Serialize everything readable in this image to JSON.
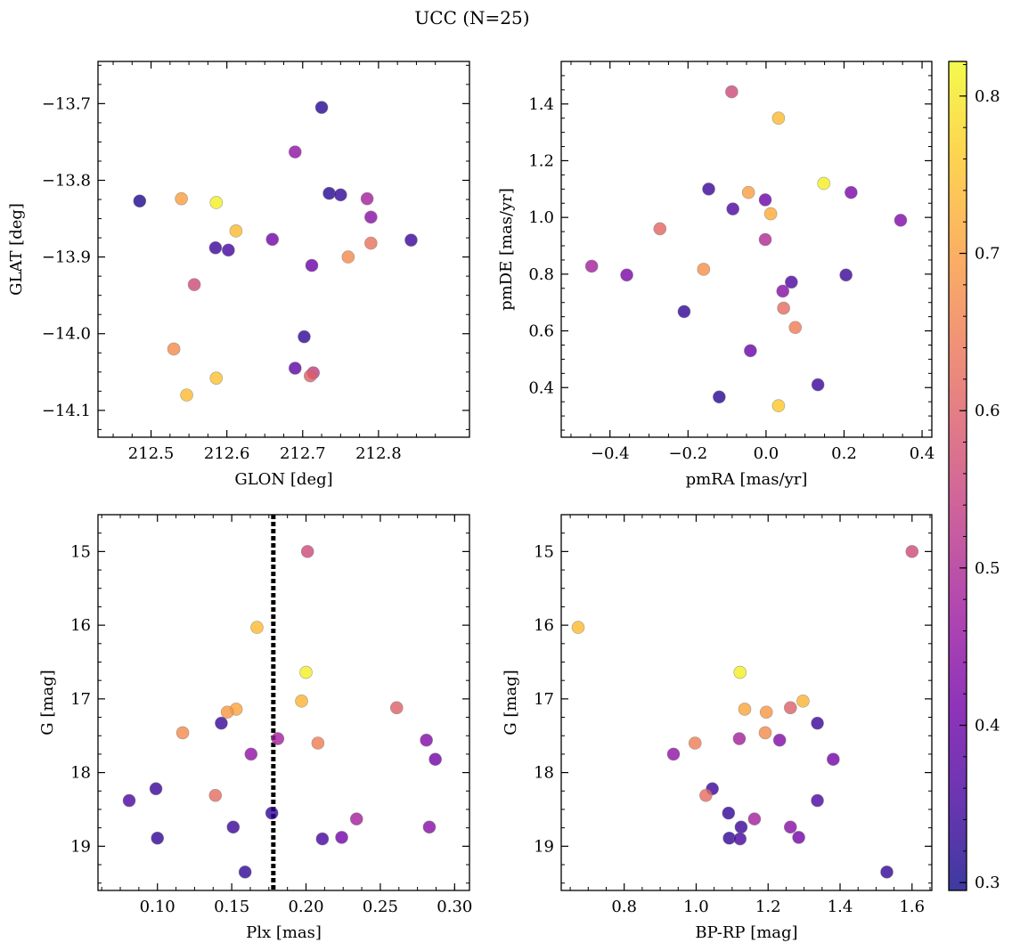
{
  "figure": {
    "title": "UCC (N=25)"
  },
  "colors": {
    "cmap": [
      "#0d0887",
      "#46039f",
      "#7201a8",
      "#9c179e",
      "#bd3786",
      "#d8576b",
      "#ed7953",
      "#fb9f3a",
      "#fdca26",
      "#f0f921"
    ],
    "marker_alpha": 0.8,
    "marker_edge": "#7f7f7f",
    "vline": "#000000"
  },
  "chart_data": [
    {
      "type": "scatter",
      "panel": "top-left",
      "xlabel": "GLON [deg]",
      "ylabel": "GLAT [deg]",
      "xlim": [
        212.43,
        212.92
      ],
      "ylim": [
        -14.135,
        -13.645
      ],
      "xticks": [
        212.5,
        212.6,
        212.7,
        212.8
      ],
      "xtick_labels": [
        "212.5",
        "212.6",
        "212.7",
        "212.8"
      ],
      "yticks": [
        -13.7,
        -13.8,
        -13.9,
        -14.0,
        -14.1
      ],
      "ytick_labels": [
        "−13.7",
        "−13.8",
        "−13.9",
        "−14.0",
        "−14.1"
      ],
      "grid": false,
      "points": [
        {
          "x": 212.725,
          "y": -13.705,
          "c": 0.32
        },
        {
          "x": 212.69,
          "y": -13.763,
          "c": 0.45
        },
        {
          "x": 212.485,
          "y": -13.827,
          "c": 0.31
        },
        {
          "x": 212.54,
          "y": -13.824,
          "c": 0.7
        },
        {
          "x": 212.586,
          "y": -13.829,
          "c": 0.81
        },
        {
          "x": 212.735,
          "y": -13.817,
          "c": 0.32
        },
        {
          "x": 212.75,
          "y": -13.819,
          "c": 0.33
        },
        {
          "x": 212.785,
          "y": -13.824,
          "c": 0.48
        },
        {
          "x": 212.79,
          "y": -13.848,
          "c": 0.44
        },
        {
          "x": 212.612,
          "y": -13.866,
          "c": 0.74
        },
        {
          "x": 212.585,
          "y": -13.888,
          "c": 0.34
        },
        {
          "x": 212.602,
          "y": -13.891,
          "c": 0.35
        },
        {
          "x": 212.66,
          "y": -13.877,
          "c": 0.41
        },
        {
          "x": 212.79,
          "y": -13.882,
          "c": 0.63
        },
        {
          "x": 212.843,
          "y": -13.878,
          "c": 0.34
        },
        {
          "x": 212.76,
          "y": -13.9,
          "c": 0.67
        },
        {
          "x": 212.712,
          "y": -13.911,
          "c": 0.4
        },
        {
          "x": 212.557,
          "y": -13.936,
          "c": 0.56
        },
        {
          "x": 212.702,
          "y": -14.004,
          "c": 0.33
        },
        {
          "x": 212.53,
          "y": -14.02,
          "c": 0.67
        },
        {
          "x": 212.69,
          "y": -14.045,
          "c": 0.38
        },
        {
          "x": 212.714,
          "y": -14.051,
          "c": 0.53
        },
        {
          "x": 212.71,
          "y": -14.055,
          "c": 0.6
        },
        {
          "x": 212.586,
          "y": -14.058,
          "c": 0.75
        },
        {
          "x": 212.547,
          "y": -14.08,
          "c": 0.74
        }
      ]
    },
    {
      "type": "scatter",
      "panel": "top-right",
      "xlabel": "pmRA [mas/yr]",
      "ylabel": "pmDE [mas/yr]",
      "xlim": [
        -0.525,
        0.425
      ],
      "ylim": [
        0.225,
        1.55
      ],
      "xticks": [
        -0.4,
        -0.2,
        0.0,
        0.2,
        0.4
      ],
      "xtick_labels": [
        "−0.4",
        "−0.2",
        "0.0",
        "0.2",
        "0.4"
      ],
      "yticks": [
        0.4,
        0.6,
        0.8,
        1.0,
        1.2,
        1.4
      ],
      "ytick_labels": [
        "0.4",
        "0.6",
        "0.8",
        "1.0",
        "1.2",
        "1.4"
      ],
      "grid": false,
      "points": [
        {
          "x": -0.088,
          "y": 1.443,
          "c": 0.56
        },
        {
          "x": 0.032,
          "y": 1.35,
          "c": 0.74
        },
        {
          "x": 0.148,
          "y": 1.12,
          "c": 0.81
        },
        {
          "x": -0.147,
          "y": 1.1,
          "c": 0.34
        },
        {
          "x": -0.045,
          "y": 1.088,
          "c": 0.7
        },
        {
          "x": 0.218,
          "y": 1.088,
          "c": 0.42
        },
        {
          "x": -0.002,
          "y": 1.062,
          "c": 0.4
        },
        {
          "x": -0.085,
          "y": 1.03,
          "c": 0.36
        },
        {
          "x": 0.012,
          "y": 1.013,
          "c": 0.72
        },
        {
          "x": 0.345,
          "y": 0.99,
          "c": 0.43
        },
        {
          "x": -0.272,
          "y": 0.96,
          "c": 0.61
        },
        {
          "x": -0.002,
          "y": 0.922,
          "c": 0.5
        },
        {
          "x": -0.447,
          "y": 0.828,
          "c": 0.48
        },
        {
          "x": -0.16,
          "y": 0.817,
          "c": 0.68
        },
        {
          "x": -0.357,
          "y": 0.797,
          "c": 0.42
        },
        {
          "x": 0.205,
          "y": 0.797,
          "c": 0.34
        },
        {
          "x": 0.065,
          "y": 0.772,
          "c": 0.36
        },
        {
          "x": 0.043,
          "y": 0.74,
          "c": 0.44
        },
        {
          "x": 0.045,
          "y": 0.68,
          "c": 0.62
        },
        {
          "x": -0.21,
          "y": 0.668,
          "c": 0.33
        },
        {
          "x": 0.075,
          "y": 0.612,
          "c": 0.65
        },
        {
          "x": -0.04,
          "y": 0.53,
          "c": 0.4
        },
        {
          "x": 0.133,
          "y": 0.41,
          "c": 0.34
        },
        {
          "x": -0.12,
          "y": 0.367,
          "c": 0.32
        },
        {
          "x": 0.032,
          "y": 0.336,
          "c": 0.76
        }
      ]
    },
    {
      "type": "scatter",
      "panel": "bottom-left",
      "xlabel": "Plx [mas]",
      "ylabel": "G [mag]",
      "xlim": [
        0.06,
        0.31
      ],
      "ylim": [
        19.6,
        14.5
      ],
      "y_inverted": true,
      "xticks": [
        0.1,
        0.15,
        0.2,
        0.25,
        0.3
      ],
      "xtick_labels": [
        "0.10",
        "0.15",
        "0.20",
        "0.25",
        "0.30"
      ],
      "yticks": [
        15,
        16,
        17,
        18,
        19
      ],
      "ytick_labels": [
        "15",
        "16",
        "17",
        "18",
        "19"
      ],
      "grid": false,
      "vline": {
        "x": 0.178,
        "style": "dotted"
      },
      "points": [
        {
          "x": 0.201,
          "y": 15.0,
          "c": 0.56
        },
        {
          "x": 0.167,
          "y": 16.03,
          "c": 0.74
        },
        {
          "x": 0.2,
          "y": 16.64,
          "c": 0.81
        },
        {
          "x": 0.197,
          "y": 17.03,
          "c": 0.73
        },
        {
          "x": 0.153,
          "y": 17.14,
          "c": 0.71
        },
        {
          "x": 0.147,
          "y": 17.18,
          "c": 0.69
        },
        {
          "x": 0.261,
          "y": 17.12,
          "c": 0.6
        },
        {
          "x": 0.117,
          "y": 17.46,
          "c": 0.67
        },
        {
          "x": 0.143,
          "y": 17.33,
          "c": 0.34
        },
        {
          "x": 0.181,
          "y": 17.54,
          "c": 0.48
        },
        {
          "x": 0.208,
          "y": 17.6,
          "c": 0.65
        },
        {
          "x": 0.281,
          "y": 17.56,
          "c": 0.43
        },
        {
          "x": 0.163,
          "y": 17.75,
          "c": 0.45
        },
        {
          "x": 0.287,
          "y": 17.82,
          "c": 0.41
        },
        {
          "x": 0.099,
          "y": 18.22,
          "c": 0.34
        },
        {
          "x": 0.139,
          "y": 18.31,
          "c": 0.62
        },
        {
          "x": 0.081,
          "y": 18.38,
          "c": 0.36
        },
        {
          "x": 0.177,
          "y": 18.55,
          "c": 0.33
        },
        {
          "x": 0.234,
          "y": 18.63,
          "c": 0.48
        },
        {
          "x": 0.151,
          "y": 18.74,
          "c": 0.34
        },
        {
          "x": 0.283,
          "y": 18.74,
          "c": 0.44
        },
        {
          "x": 0.1,
          "y": 18.89,
          "c": 0.33
        },
        {
          "x": 0.211,
          "y": 18.9,
          "c": 0.35
        },
        {
          "x": 0.224,
          "y": 18.88,
          "c": 0.41
        },
        {
          "x": 0.159,
          "y": 19.35,
          "c": 0.33
        }
      ]
    },
    {
      "type": "scatter",
      "panel": "bottom-right",
      "xlabel": "BP-RP [mag]",
      "ylabel": "G [mag]",
      "xlim": [
        0.625,
        1.655
      ],
      "ylim": [
        19.6,
        14.5
      ],
      "y_inverted": true,
      "xticks": [
        0.8,
        1.0,
        1.2,
        1.4,
        1.6
      ],
      "xtick_labels": [
        "0.8",
        "1.0",
        "1.2",
        "1.4",
        "1.6"
      ],
      "yticks": [
        15,
        16,
        17,
        18,
        19
      ],
      "ytick_labels": [
        "15",
        "16",
        "17",
        "18",
        "19"
      ],
      "grid": false,
      "points": [
        {
          "x": 1.6,
          "y": 15.0,
          "c": 0.56
        },
        {
          "x": 0.672,
          "y": 16.03,
          "c": 0.74
        },
        {
          "x": 1.122,
          "y": 16.64,
          "c": 0.81
        },
        {
          "x": 1.297,
          "y": 17.03,
          "c": 0.73
        },
        {
          "x": 1.135,
          "y": 17.14,
          "c": 0.71
        },
        {
          "x": 1.195,
          "y": 17.18,
          "c": 0.69
        },
        {
          "x": 1.262,
          "y": 17.12,
          "c": 0.6
        },
        {
          "x": 1.192,
          "y": 17.46,
          "c": 0.67
        },
        {
          "x": 1.337,
          "y": 17.33,
          "c": 0.34
        },
        {
          "x": 1.12,
          "y": 17.54,
          "c": 0.48
        },
        {
          "x": 0.997,
          "y": 17.6,
          "c": 0.65
        },
        {
          "x": 1.232,
          "y": 17.56,
          "c": 0.43
        },
        {
          "x": 0.937,
          "y": 17.75,
          "c": 0.45
        },
        {
          "x": 1.381,
          "y": 17.82,
          "c": 0.41
        },
        {
          "x": 1.045,
          "y": 18.22,
          "c": 0.34
        },
        {
          "x": 1.027,
          "y": 18.31,
          "c": 0.62
        },
        {
          "x": 1.337,
          "y": 18.38,
          "c": 0.36
        },
        {
          "x": 1.09,
          "y": 18.55,
          "c": 0.33
        },
        {
          "x": 1.162,
          "y": 18.63,
          "c": 0.48
        },
        {
          "x": 1.125,
          "y": 18.74,
          "c": 0.34
        },
        {
          "x": 1.262,
          "y": 18.74,
          "c": 0.44
        },
        {
          "x": 1.092,
          "y": 18.89,
          "c": 0.33
        },
        {
          "x": 1.122,
          "y": 18.9,
          "c": 0.35
        },
        {
          "x": 1.285,
          "y": 18.88,
          "c": 0.41
        },
        {
          "x": 1.53,
          "y": 19.35,
          "c": 0.33
        }
      ]
    }
  ],
  "colorbar": {
    "vmin": 0.295,
    "vmax": 0.822,
    "ticks": [
      0.3,
      0.4,
      0.5,
      0.6,
      0.7,
      0.8
    ],
    "tick_labels": [
      "0.3",
      "0.4",
      "0.5",
      "0.6",
      "0.7",
      "0.8"
    ]
  }
}
